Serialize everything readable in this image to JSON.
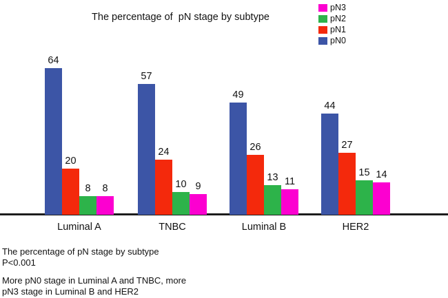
{
  "chart_data": {
    "type": "bar",
    "title": "The percentage of  pN stage by subtype",
    "categories": [
      "Luminal A",
      "TNBC",
      "Luminal B",
      "HER2"
    ],
    "series": [
      {
        "name": "pN0",
        "color": "#3C55A6",
        "values": [
          64,
          57,
          49,
          44
        ]
      },
      {
        "name": "pN1",
        "color": "#F4290C",
        "values": [
          20,
          24,
          26,
          27
        ]
      },
      {
        "name": "pN2",
        "color": "#2DB34A",
        "values": [
          8,
          10,
          13,
          15
        ]
      },
      {
        "name": "pN3",
        "color": "#FC00D0",
        "values": [
          8,
          9,
          11,
          14
        ]
      }
    ],
    "legend_order": [
      "pN3",
      "pN2",
      "pN1",
      "pN0"
    ],
    "legend_position": "top-right",
    "value_labels": true,
    "grid": false,
    "xlabel": "",
    "ylabel": "",
    "ylim": [
      0,
      70
    ]
  },
  "captions": {
    "line1": "The percentage of pN stage by subtype",
    "line2": "P<0.001",
    "line3": "More pN0 stage in Luminal A and TNBC, more",
    "line4": "pN3 stage in Luminal B and HER2"
  },
  "colors": {
    "axis": "#1c1c1c",
    "background": "#ffffff",
    "pN0": "#3C55A6",
    "pN1": "#F4290C",
    "pN2": "#2DB34A",
    "pN3": "#FC00D0"
  }
}
